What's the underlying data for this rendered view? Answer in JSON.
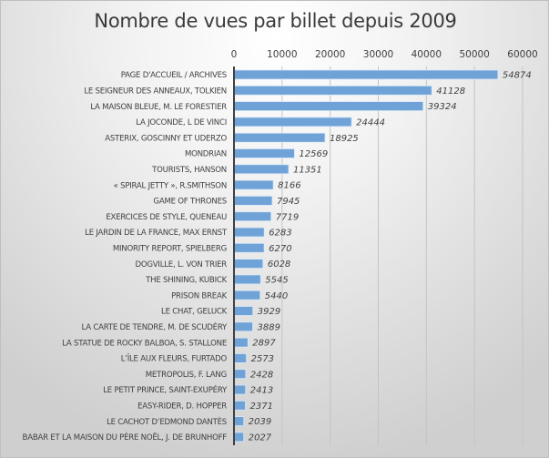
{
  "chart_data": {
    "type": "bar",
    "orientation": "horizontal",
    "title": "Nombre de vues par billet depuis 2009",
    "xlabel": "",
    "ylabel": "",
    "xlim": [
      0,
      60000
    ],
    "x_ticks": [
      "0",
      "10000",
      "20000",
      "30000",
      "40000",
      "50000",
      "60000"
    ],
    "x_tick_values": [
      0,
      10000,
      20000,
      30000,
      40000,
      50000,
      60000
    ],
    "axis_position": "top",
    "grid": true,
    "legend": "none",
    "bar_color": "#6fa3d8",
    "categories": [
      "PAGE D'ACCUEIL / ARCHIVES",
      "LE SEIGNEUR DES ANNEAUX, TOLKIEN",
      "LA MAISON BLEUE, M. LE FORESTIER",
      "LA JOCONDE, L DE VINCI",
      "ASTERIX, GOSCINNY ET UDERZO",
      "MONDRIAN",
      "TOURISTS, HANSON",
      "« SPIRAL JETTY », R.SMITHSON",
      "GAME OF THRONES",
      "EXERCICES DE STYLE, QUENEAU",
      "LE JARDIN DE LA FRANCE, MAX ERNST",
      "MINORITY REPORT, SPIELBERG",
      "DOGVILLE, L. VON TRIER",
      "THE SHINING, KUBICK",
      "PRISON BREAK",
      "LE CHAT, GELUCK",
      "LA CARTE DE TENDRE, M. DE SCUDÉRY",
      "LA STATUE DE ROCKY BALBOA, S. STALLONE",
      "L’ÎLE AUX FLEURS, FURTADO",
      "METROPOLIS, F. LANG",
      "LE PETIT PRINCE, SAINT-EXUPÉRY",
      "EASY-RIDER, D. HOPPER",
      "LE CACHOT D’EDMOND DANTÈS",
      "BABAR ET LA MAISON DU PÈRE NOËL, J. DE BRUNHOFF"
    ],
    "values": [
      54874,
      41128,
      39324,
      24444,
      18925,
      12569,
      11351,
      8166,
      7945,
      7719,
      6283,
      6270,
      6028,
      5545,
      5440,
      3929,
      3889,
      2897,
      2573,
      2428,
      2413,
      2371,
      2039,
      2027
    ]
  }
}
